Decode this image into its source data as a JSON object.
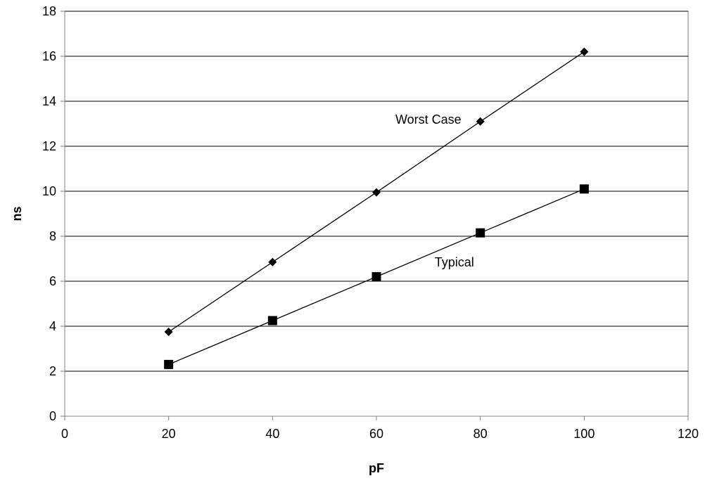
{
  "chart_data": {
    "type": "scatter",
    "xlabel": "pF",
    "ylabel": "ns",
    "xlim": [
      0,
      120
    ],
    "ylim": [
      0,
      18
    ],
    "x_ticks": [
      0,
      20,
      40,
      60,
      80,
      100,
      120
    ],
    "y_ticks": [
      0,
      2,
      4,
      6,
      8,
      10,
      12,
      14,
      16,
      18
    ],
    "grid": "horizontal",
    "legend": "none",
    "series": [
      {
        "name": "Worst Case",
        "marker": "diamond",
        "color": "#000000",
        "x": [
          20,
          40,
          60,
          80,
          100
        ],
        "y": [
          3.75,
          6.85,
          9.95,
          13.1,
          16.2
        ]
      },
      {
        "name": "Typical",
        "marker": "square",
        "color": "#000000",
        "x": [
          20,
          40,
          60,
          80,
          100
        ],
        "y": [
          2.3,
          4.25,
          6.2,
          8.15,
          10.1
        ]
      }
    ],
    "annotations": [
      {
        "text": "Worst Case",
        "series": 0
      },
      {
        "text": "Typical",
        "series": 1
      }
    ]
  }
}
